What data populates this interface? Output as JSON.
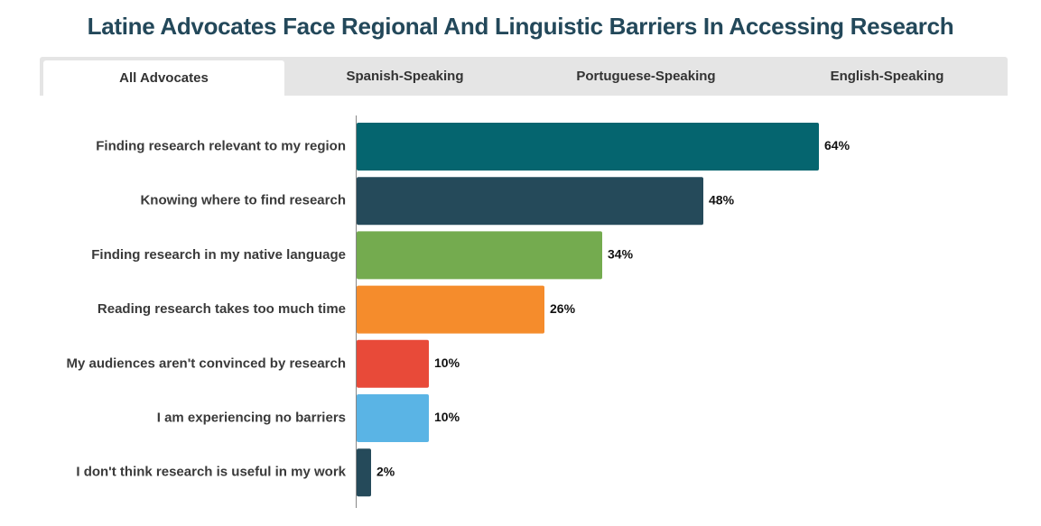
{
  "page": {
    "title": "Latine Advocates Face Regional And Linguistic Barriers In Accessing Research"
  },
  "tabs": [
    {
      "label": "All Advocates",
      "active": true
    },
    {
      "label": "Spanish-Speaking",
      "active": false
    },
    {
      "label": "Portuguese-Speaking",
      "active": false
    },
    {
      "label": "English-Speaking",
      "active": false
    }
  ],
  "chart_data": {
    "type": "bar",
    "orientation": "horizontal",
    "title": "",
    "xlabel": "",
    "ylabel": "",
    "xlim": [
      0,
      64
    ],
    "grid": false,
    "legend": "none",
    "value_suffix": "%",
    "categories": [
      "Finding research relevant to my region",
      "Knowing where to find research",
      "Finding research in my native language",
      "Reading research takes too much time",
      "My audiences aren't convinced by research",
      "I am experiencing no barriers",
      "I don't think research is useful in my work"
    ],
    "values": [
      64,
      48,
      34,
      26,
      10,
      10,
      2
    ],
    "colors": [
      "#05656f",
      "#254a5a",
      "#74ab4f",
      "#f58c2c",
      "#e84a39",
      "#5ab4e5",
      "#254a5a"
    ]
  }
}
